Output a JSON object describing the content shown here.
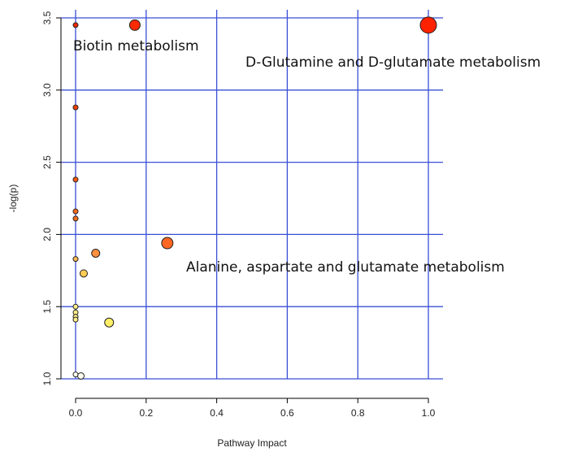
{
  "chart_data": {
    "type": "scatter",
    "title": "",
    "xlabel": "Pathway Impact",
    "ylabel": "-log(p)",
    "xlim": [
      0.0,
      1.0
    ],
    "ylim": [
      1.0,
      3.5
    ],
    "x_ticks": [
      "0.0",
      "0.2",
      "0.4",
      "0.6",
      "0.8",
      "1.0"
    ],
    "y_ticks": [
      "1.0",
      "1.5",
      "2.0",
      "2.5",
      "3.0",
      "3.5"
    ],
    "grid": true,
    "points": [
      {
        "x": 1.0,
        "y": 3.45,
        "size": 10,
        "color": "#ff2200"
      },
      {
        "x": 0.168,
        "y": 3.45,
        "size": 6.5,
        "color": "#ff2a00"
      },
      {
        "x": 0.0,
        "y": 3.45,
        "size": 3,
        "color": "#f02800"
      },
      {
        "x": 0.0,
        "y": 2.88,
        "size": 3,
        "color": "#f54000"
      },
      {
        "x": 0.0,
        "y": 2.38,
        "size": 3,
        "color": "#ff5a10"
      },
      {
        "x": 0.0,
        "y": 2.16,
        "size": 3,
        "color": "#ff6a18"
      },
      {
        "x": 0.0,
        "y": 2.11,
        "size": 3,
        "color": "#ff6e1a"
      },
      {
        "x": 0.26,
        "y": 1.94,
        "size": 7,
        "color": "#ff6622"
      },
      {
        "x": 0.057,
        "y": 1.87,
        "size": 5,
        "color": "#ff9040"
      },
      {
        "x": 0.0,
        "y": 1.83,
        "size": 3,
        "color": "#ffbb55"
      },
      {
        "x": 0.023,
        "y": 1.73,
        "size": 4.5,
        "color": "#ffcc55"
      },
      {
        "x": 0.0,
        "y": 1.5,
        "size": 3,
        "color": "#ffee88"
      },
      {
        "x": 0.0,
        "y": 1.46,
        "size": 3,
        "color": "#ffee88"
      },
      {
        "x": 0.0,
        "y": 1.43,
        "size": 3,
        "color": "#ffee88"
      },
      {
        "x": 0.0,
        "y": 1.41,
        "size": 3,
        "color": "#ffee88"
      },
      {
        "x": 0.095,
        "y": 1.39,
        "size": 5.5,
        "color": "#ffee66"
      },
      {
        "x": 0.0,
        "y": 1.03,
        "size": 3,
        "color": "#fffef0"
      },
      {
        "x": 0.015,
        "y": 1.02,
        "size": 4,
        "color": "#fffef0"
      }
    ],
    "annotations": [
      {
        "text": "Biotin metabolism"
      },
      {
        "text": "D-Glutamine and D-glutamate metabolism"
      },
      {
        "text": "Alanine, aspartate and glutamate metabolism"
      }
    ],
    "colors": {
      "grid": "#3a4fd6",
      "axis": "#000000",
      "point_stroke": "#222222"
    }
  }
}
